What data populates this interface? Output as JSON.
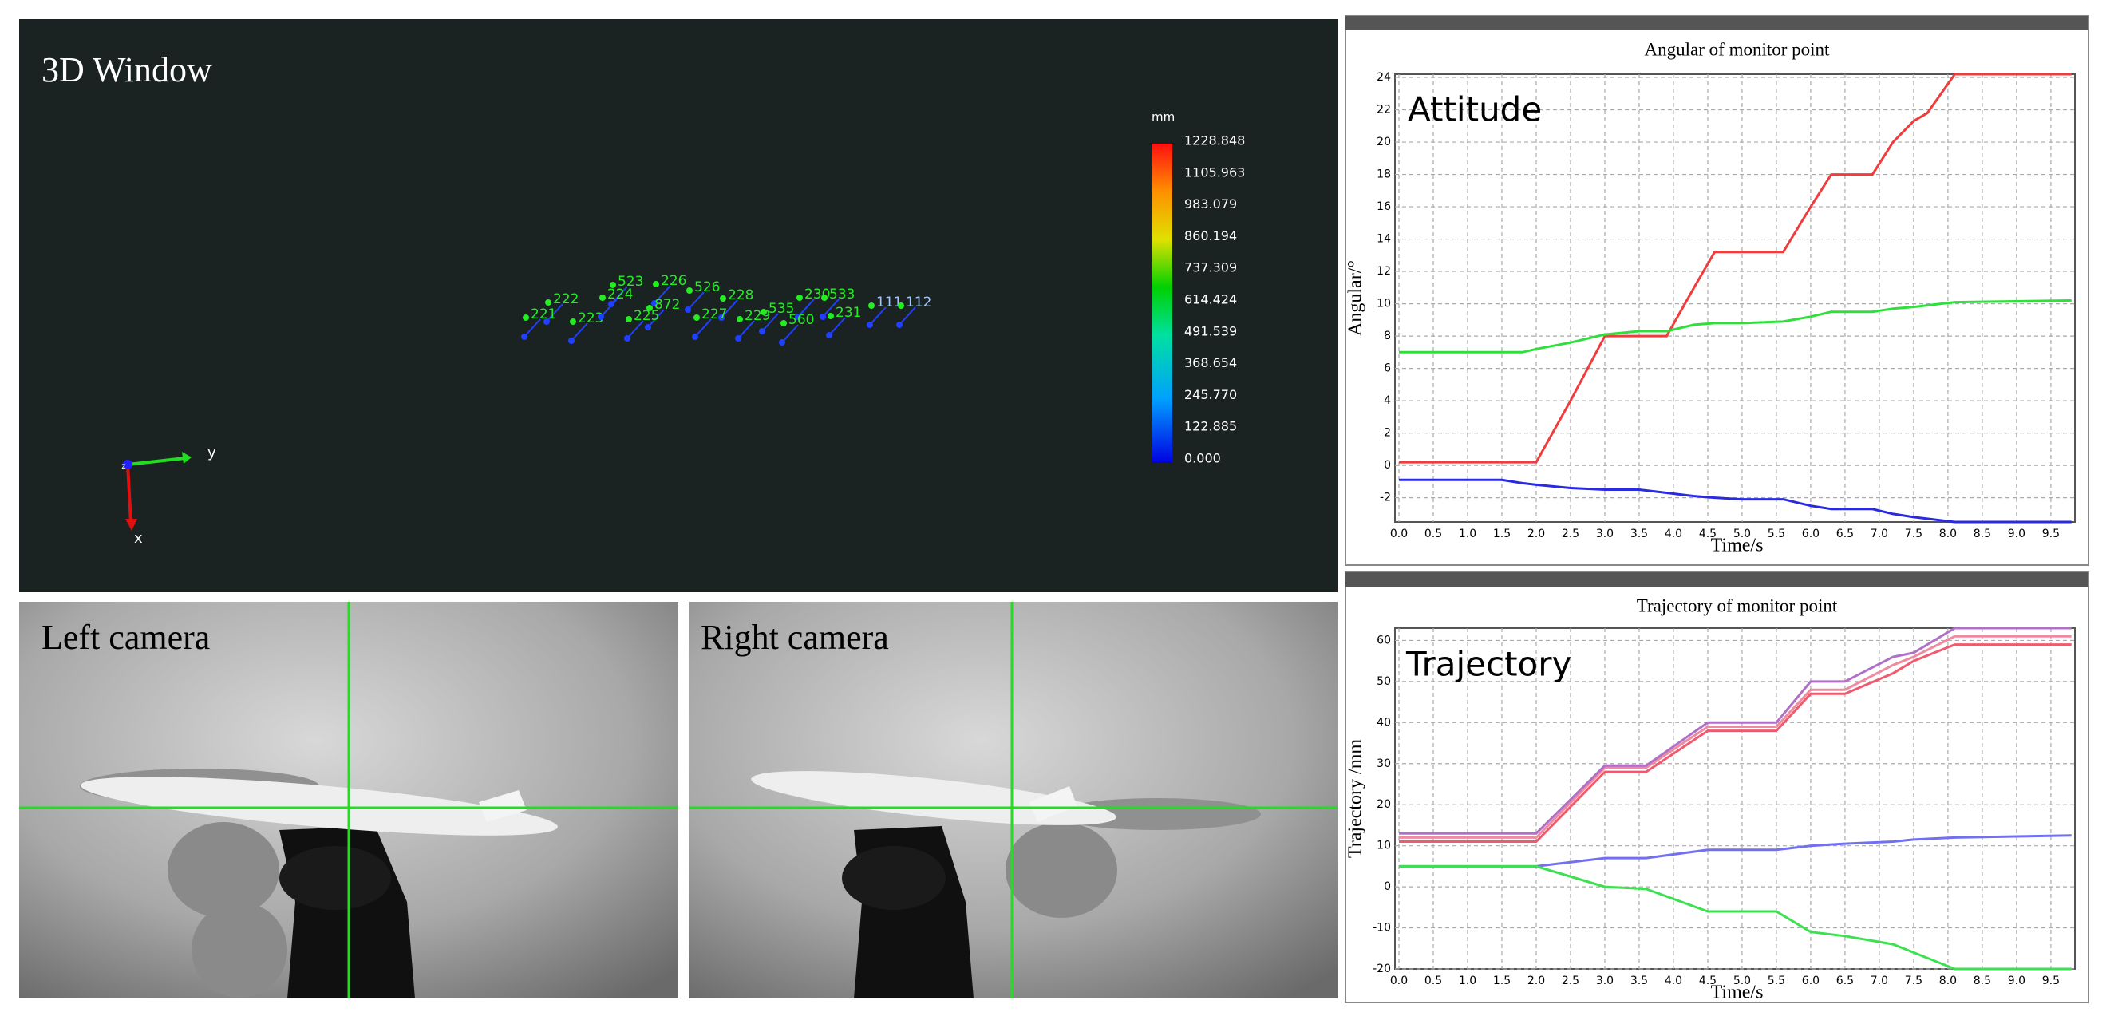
{
  "windows": {
    "view3d": {
      "title": "3D Window",
      "unit": "mm",
      "scale": [
        "1228.848",
        "1105.963",
        "983.079",
        "860.194",
        "737.309",
        "614.424",
        "491.539",
        "368.654",
        "245.770",
        "122.885",
        "0.000"
      ],
      "axes": [
        "y",
        "x",
        "z"
      ],
      "points": [
        "222",
        "221",
        "223",
        "523",
        "224",
        "226",
        "872",
        "225",
        "526",
        "228",
        "227",
        "229",
        "230",
        "533",
        "535",
        "560",
        "231",
        "111",
        "112"
      ]
    },
    "left_camera": {
      "title": "Left camera"
    },
    "right_camera": {
      "title": "Right camera"
    }
  },
  "chart_data": [
    {
      "type": "line",
      "title": "Angular of monitor point",
      "annotation": "Attitude",
      "x_label": "Time/s",
      "y_label": "Angular/°",
      "x": [
        0,
        1.5,
        1.8,
        2.0,
        2.5,
        3.0,
        3.5,
        3.9,
        4.3,
        4.6,
        5.0,
        5.6,
        6.0,
        6.3,
        6.9,
        7.2,
        7.5,
        7.7,
        8.1,
        9.8
      ],
      "series": [
        {
          "color": "#f03c3c",
          "values": [
            0.2,
            0.2,
            0.2,
            0.2,
            4,
            8,
            8,
            8,
            11,
            13.2,
            13.2,
            13.2,
            16,
            18,
            18,
            20,
            21.3,
            21.8,
            24.2,
            24.2
          ]
        },
        {
          "color": "#2ee03a",
          "values": [
            7,
            7,
            7,
            7.2,
            7.6,
            8.1,
            8.3,
            8.3,
            8.7,
            8.8,
            8.8,
            8.9,
            9.2,
            9.5,
            9.5,
            9.7,
            9.8,
            9.9,
            10.1,
            10.2
          ]
        },
        {
          "color": "#2a2ae0",
          "values": [
            -0.9,
            -0.9,
            -1.1,
            -1.2,
            -1.4,
            -1.5,
            -1.5,
            -1.7,
            -1.9,
            -2.0,
            -2.1,
            -2.1,
            -2.5,
            -2.7,
            -2.7,
            -3.0,
            -3.2,
            -3.3,
            -3.5,
            -3.5
          ]
        }
      ],
      "xlim": [
        0,
        9.85
      ],
      "ylim": [
        -3.5,
        24.2
      ],
      "xticks": [
        {
          "value": 0,
          "label": "0.0"
        },
        0.5,
        {
          "value": 1,
          "label": "1.0"
        },
        1.5,
        {
          "value": 2,
          "label": "2.0"
        },
        2.5,
        {
          "value": 3,
          "label": "3.0"
        },
        3.5,
        {
          "value": 4,
          "label": "4.0"
        },
        4.5,
        {
          "value": 5,
          "label": "5.0"
        },
        5.5,
        {
          "value": 6,
          "label": "6.0"
        },
        6.5,
        {
          "value": 7,
          "label": "7.0"
        },
        7.5,
        {
          "value": 8,
          "label": "8.0"
        },
        8.5,
        {
          "value": 9,
          "label": "9.0"
        },
        9.5
      ],
      "yticks": [
        -2,
        0,
        2,
        4,
        6,
        8,
        10,
        12,
        14,
        16,
        18,
        20,
        22,
        24
      ],
      "grid": true
    },
    {
      "type": "line",
      "title": "Trajectory of monitor point",
      "annotation": "Trajectory",
      "x_label": "Time/s",
      "y_label": "Trajectory /mm",
      "x": [
        0,
        2.0,
        3.0,
        3.6,
        4.5,
        5.5,
        6.0,
        6.5,
        7.2,
        7.5,
        8.1,
        9.8
      ],
      "series": [
        {
          "color": "#f05a6e",
          "values": [
            11,
            11,
            28,
            28,
            38,
            38,
            47,
            47,
            52,
            55,
            59,
            59
          ]
        },
        {
          "color": "#f08aa0",
          "values": [
            12,
            12,
            29,
            29,
            39,
            39,
            48,
            48,
            54,
            56,
            61,
            61
          ]
        },
        {
          "color": "#b070c8",
          "values": [
            13,
            13,
            29.5,
            29.5,
            40,
            40,
            50,
            50,
            56,
            57,
            63,
            63
          ]
        },
        {
          "color": "#7070f0",
          "values": [
            5,
            5,
            7,
            7,
            9,
            9,
            10,
            10.5,
            11,
            11.5,
            12,
            12.5
          ]
        },
        {
          "color": "#3ce050",
          "values": [
            5,
            5,
            0,
            -0.5,
            -6,
            -6,
            -11,
            -12,
            -14,
            -16,
            -20,
            -20
          ]
        }
      ],
      "xlim": [
        0,
        9.85
      ],
      "ylim": [
        -20,
        63
      ],
      "xticks": [
        {
          "value": 0,
          "label": "0.0"
        },
        0.5,
        {
          "value": 1,
          "label": "1.0"
        },
        1.5,
        {
          "value": 2,
          "label": "2.0"
        },
        2.5,
        {
          "value": 3,
          "label": "3.0"
        },
        3.5,
        {
          "value": 4,
          "label": "4.0"
        },
        4.5,
        {
          "value": 5,
          "label": "5.0"
        },
        5.5,
        {
          "value": 6,
          "label": "6.0"
        },
        6.5,
        {
          "value": 7,
          "label": "7.0"
        },
        7.5,
        {
          "value": 8,
          "label": "8.0"
        },
        8.5,
        {
          "value": 9,
          "label": "9.0"
        },
        9.5
      ],
      "yticks": [
        -20,
        -10,
        0,
        10,
        20,
        30,
        40,
        50,
        60
      ],
      "grid": true
    }
  ]
}
